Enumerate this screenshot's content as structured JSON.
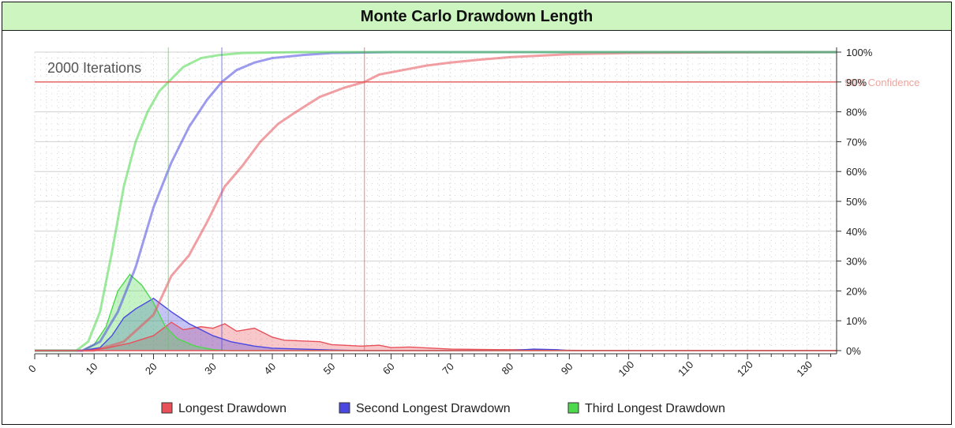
{
  "chart_data": {
    "type": "area",
    "title": "Monte Carlo Drawdown Length",
    "annotation": "2000 Iterations",
    "x_ticks": [
      0,
      10,
      20,
      30,
      40,
      50,
      60,
      70,
      80,
      90,
      100,
      110,
      120,
      130
    ],
    "xlim": [
      0,
      135
    ],
    "y_ticks": [
      0,
      10,
      20,
      30,
      40,
      50,
      60,
      70,
      80,
      90,
      100
    ],
    "y_tick_suffix": "%",
    "ylim": [
      0,
      100
    ],
    "grid": true,
    "legend_position": "bottom-center",
    "confidence_line": {
      "label": "90% Confidence",
      "y": 90,
      "color": "#e35a5a"
    },
    "series": [
      {
        "name": "Longest Drawdown",
        "color": "#e8505a",
        "marker": 55.5,
        "distribution": [
          [
            0,
            0
          ],
          [
            8,
            0
          ],
          [
            12,
            0.8
          ],
          [
            16,
            2.5
          ],
          [
            20,
            5
          ],
          [
            23,
            9.5
          ],
          [
            25,
            7
          ],
          [
            28,
            8
          ],
          [
            30,
            7.5
          ],
          [
            32,
            9
          ],
          [
            34,
            6.5
          ],
          [
            37,
            7.5
          ],
          [
            40,
            4.5
          ],
          [
            42,
            3.5
          ],
          [
            48,
            3
          ],
          [
            50,
            2
          ],
          [
            55,
            1.5
          ],
          [
            58,
            1.8
          ],
          [
            60,
            1
          ],
          [
            63,
            1.2
          ],
          [
            70,
            0.5
          ],
          [
            80,
            0.3
          ],
          [
            85,
            0.3
          ],
          [
            90,
            0.1
          ],
          [
            100,
            0
          ],
          [
            135,
            0
          ]
        ],
        "cumulative": [
          [
            0,
            0
          ],
          [
            10,
            0
          ],
          [
            15,
            3
          ],
          [
            20,
            12
          ],
          [
            23,
            25
          ],
          [
            26,
            32
          ],
          [
            29,
            43
          ],
          [
            32,
            55
          ],
          [
            35,
            62
          ],
          [
            38,
            70
          ],
          [
            41,
            76
          ],
          [
            44,
            80
          ],
          [
            48,
            85
          ],
          [
            52,
            88
          ],
          [
            55.5,
            90
          ],
          [
            58,
            92.5
          ],
          [
            62,
            94
          ],
          [
            66,
            95.5
          ],
          [
            70,
            96.5
          ],
          [
            75,
            97.5
          ],
          [
            80,
            98.3
          ],
          [
            85,
            98.8
          ],
          [
            90,
            99.3
          ],
          [
            100,
            99.7
          ],
          [
            115,
            99.9
          ],
          [
            135,
            100
          ]
        ]
      },
      {
        "name": "Second Longest Drawdown",
        "color": "#4a48e0",
        "marker": 31.5,
        "distribution": [
          [
            0,
            0
          ],
          [
            8,
            0
          ],
          [
            11,
            1
          ],
          [
            13,
            5
          ],
          [
            15,
            11
          ],
          [
            17,
            14
          ],
          [
            20,
            17.5
          ],
          [
            23,
            13
          ],
          [
            26,
            9
          ],
          [
            30,
            5
          ],
          [
            33,
            3
          ],
          [
            37,
            1.5
          ],
          [
            40,
            0.8
          ],
          [
            45,
            0.5
          ],
          [
            50,
            0.2
          ],
          [
            55,
            0
          ],
          [
            80,
            0
          ],
          [
            84,
            0.5
          ],
          [
            88,
            0.3
          ],
          [
            90,
            0
          ],
          [
            135,
            0
          ]
        ],
        "cumulative": [
          [
            0,
            0
          ],
          [
            8,
            0
          ],
          [
            11,
            3
          ],
          [
            14,
            13
          ],
          [
            17,
            28
          ],
          [
            20,
            48
          ],
          [
            23,
            63
          ],
          [
            26,
            75
          ],
          [
            29,
            84
          ],
          [
            31.5,
            90
          ],
          [
            34,
            94
          ],
          [
            37,
            96.5
          ],
          [
            40,
            98
          ],
          [
            45,
            99
          ],
          [
            50,
            99.7
          ],
          [
            60,
            100
          ],
          [
            135,
            100
          ]
        ]
      },
      {
        "name": "Third Longest Drawdown",
        "color": "#4cd94c",
        "marker": 22.5,
        "distribution": [
          [
            0,
            0
          ],
          [
            8,
            0
          ],
          [
            10,
            2
          ],
          [
            12,
            8
          ],
          [
            14,
            20
          ],
          [
            16,
            25.5
          ],
          [
            18,
            22
          ],
          [
            20,
            16
          ],
          [
            22,
            8
          ],
          [
            24,
            4
          ],
          [
            27,
            1.5
          ],
          [
            30,
            0.3
          ],
          [
            33,
            0
          ],
          [
            135,
            0
          ]
        ],
        "cumulative": [
          [
            0,
            0
          ],
          [
            7,
            0
          ],
          [
            9,
            3
          ],
          [
            11,
            13
          ],
          [
            13,
            33
          ],
          [
            15,
            55
          ],
          [
            17,
            70
          ],
          [
            19,
            80
          ],
          [
            21,
            87
          ],
          [
            22.5,
            90
          ],
          [
            25,
            95
          ],
          [
            28,
            98
          ],
          [
            31,
            99
          ],
          [
            35,
            99.7
          ],
          [
            45,
            100
          ],
          [
            135,
            100
          ]
        ]
      }
    ]
  }
}
